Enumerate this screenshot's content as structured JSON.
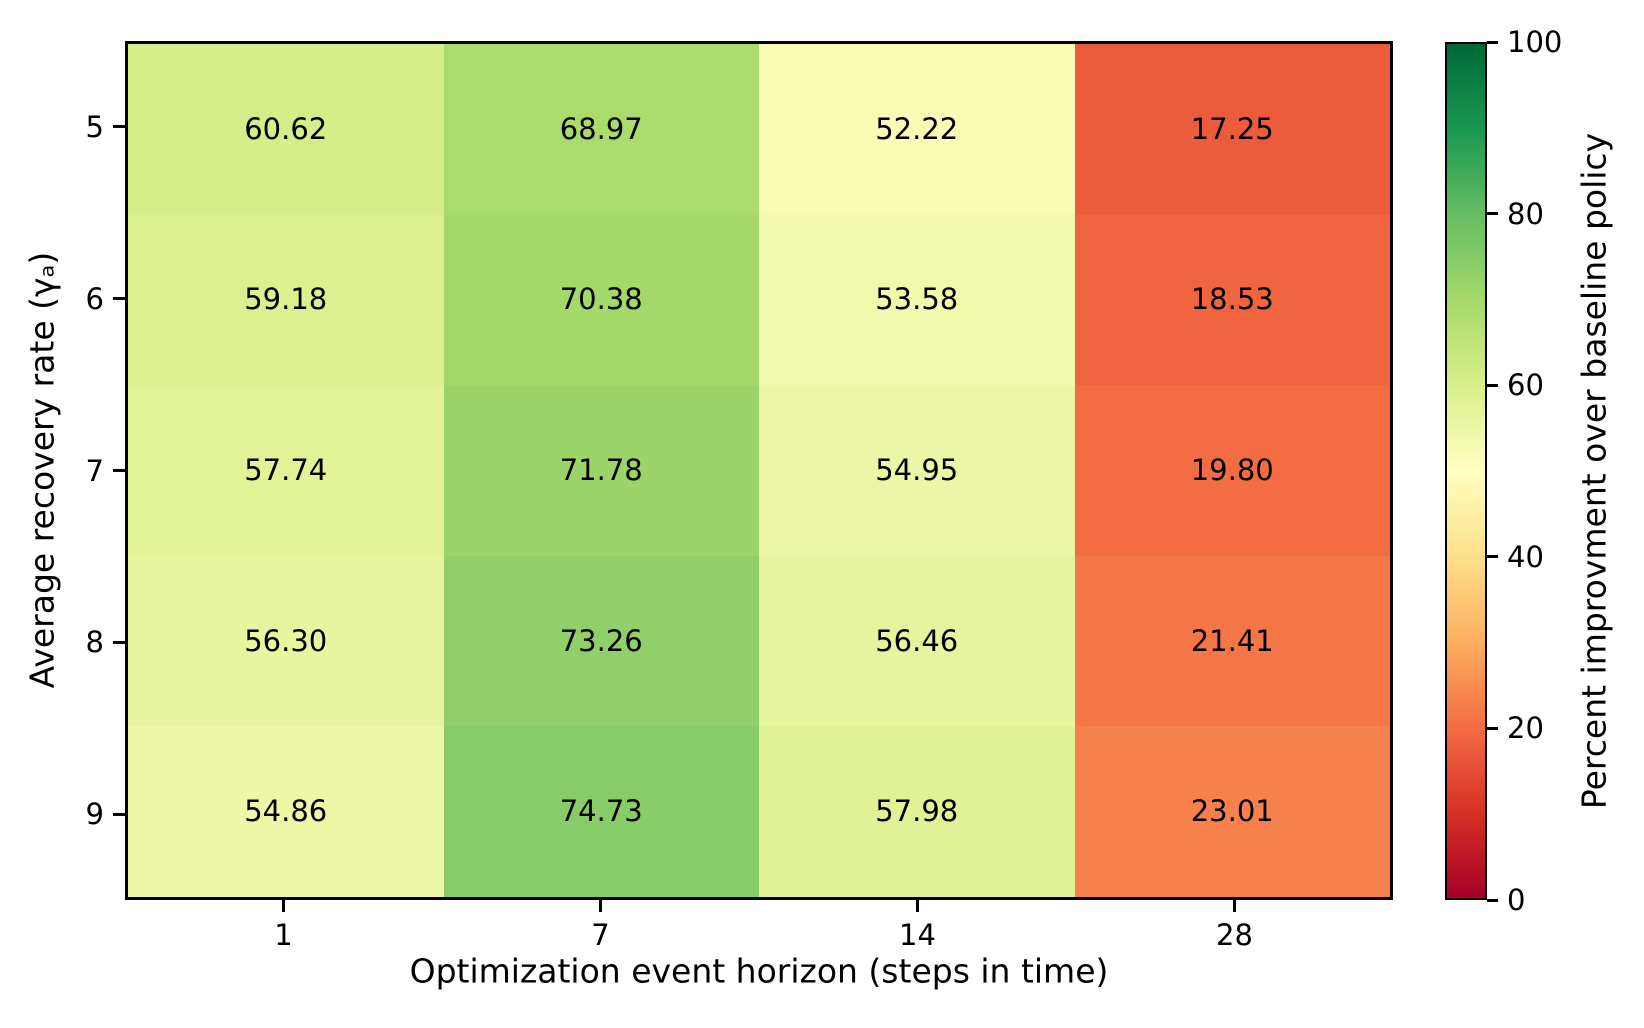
{
  "chart_data": {
    "type": "heatmap",
    "title": "",
    "xlabel": "Optimization event horizon (steps in time)",
    "ylabel": "Average recovery rate (γₐ)",
    "x_categories": [
      "1",
      "7",
      "14",
      "28"
    ],
    "y_categories": [
      "5",
      "6",
      "7",
      "8",
      "9"
    ],
    "values": [
      [
        60.62,
        68.97,
        52.22,
        17.25
      ],
      [
        59.18,
        70.38,
        53.58,
        18.53
      ],
      [
        57.74,
        71.78,
        54.95,
        19.8
      ],
      [
        56.3,
        73.26,
        56.46,
        21.41
      ],
      [
        54.86,
        74.73,
        57.98,
        23.01
      ]
    ],
    "cell_labels": [
      [
        "60.62",
        "68.97",
        "52.22",
        "17.25"
      ],
      [
        "59.18",
        "70.38",
        "53.58",
        "18.53"
      ],
      [
        "57.74",
        "71.78",
        "54.95",
        "19.80"
      ],
      [
        "56.30",
        "73.26",
        "56.46",
        "21.41"
      ],
      [
        "54.86",
        "74.73",
        "57.98",
        "23.01"
      ]
    ],
    "grid": "off",
    "annotation_color": "#000000",
    "colorbar": {
      "label": "Percent improvment over baseline policy",
      "min": 0,
      "max": 100,
      "ticks": [
        "0",
        "20",
        "40",
        "60",
        "80",
        "100"
      ],
      "position": "right"
    },
    "colormap": {
      "name": "RdYlGn",
      "stops": [
        [
          0.0,
          "#a50026"
        ],
        [
          0.1,
          "#d73027"
        ],
        [
          0.2,
          "#f46d43"
        ],
        [
          0.3,
          "#fdae61"
        ],
        [
          0.4,
          "#fee08b"
        ],
        [
          0.5,
          "#ffffbf"
        ],
        [
          0.6,
          "#d9ef8b"
        ],
        [
          0.7,
          "#a6d96a"
        ],
        [
          0.8,
          "#66bd63"
        ],
        [
          0.9,
          "#1a9850"
        ],
        [
          1.0,
          "#006837"
        ]
      ]
    }
  }
}
